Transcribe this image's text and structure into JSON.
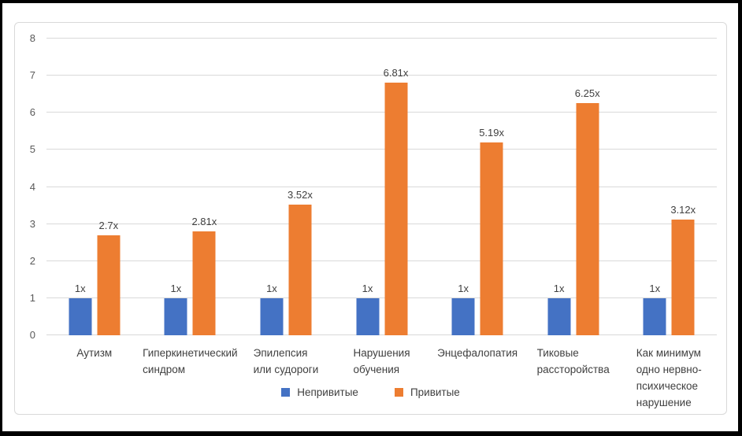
{
  "frame": {
    "outer_border_color": "#000000",
    "panel_border_color": "#d9d9d9",
    "background": "#ffffff"
  },
  "chart_data": {
    "type": "bar",
    "title": "",
    "categories": [
      "Аутизм",
      "Гиперкинетический\nсиндром",
      "Эпилепсия\nили судороги",
      "Нарушения\nобучения",
      "Энцефалопатия",
      "Тиковые\nрассторойства",
      "Как минимум\nодно нервно-\nпсихическое\nнарушение"
    ],
    "series": [
      {
        "name": "Непривитые",
        "key": "unvaccinated",
        "color": "#4472C4",
        "values": [
          1,
          1,
          1,
          1,
          1,
          1,
          1
        ],
        "labels": [
          "1x",
          "1x",
          "1x",
          "1x",
          "1x",
          "1x",
          "1x"
        ]
      },
      {
        "name": "Привитые",
        "key": "vaccinated",
        "color": "#ED7D31",
        "values": [
          2.7,
          2.81,
          3.52,
          6.81,
          5.19,
          6.25,
          3.12
        ],
        "labels": [
          "2.7x",
          "2.81x",
          "3.52x",
          "6.81x",
          "5.19x",
          "6.25x",
          "3.12x"
        ]
      }
    ],
    "xlabel": "",
    "ylabel": "",
    "ylim": [
      0,
      8
    ],
    "ytick_step": 1,
    "yticks": [
      "0",
      "1",
      "2",
      "3",
      "4",
      "5",
      "6",
      "7",
      "8"
    ],
    "grid": true,
    "legend_position": "bottom",
    "tick_color": "#595959",
    "label_color": "#404040",
    "gridline_color": "#d9d9d9"
  }
}
